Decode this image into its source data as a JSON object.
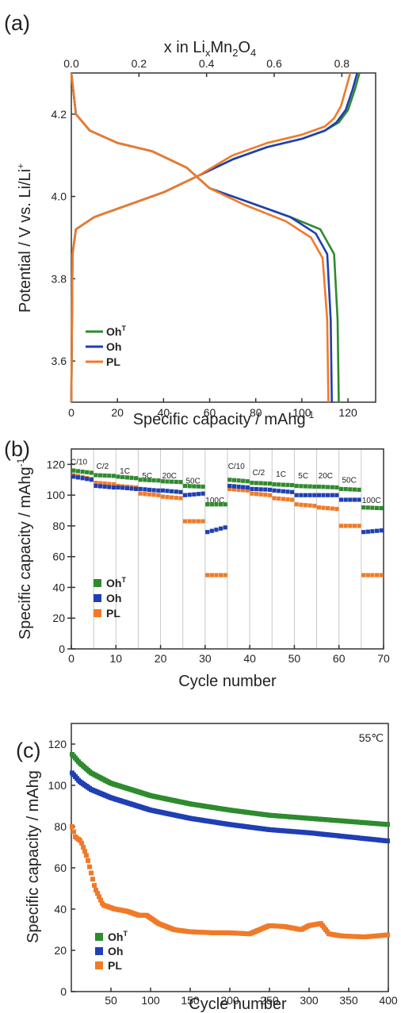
{
  "colors": {
    "OhT": "#2e8b2e",
    "Oh": "#1f3fb4",
    "PL": "#f07a28"
  },
  "chart_data": [
    {
      "panel": "(a)",
      "type": "line",
      "xlabel": "Specific capacity / mAhg",
      "xlabel_sup": "-1",
      "ylabel": "Potential / V vs. Li/Li",
      "ylabel_sup": "+",
      "top_xlabel": {
        "pre": "x in Li",
        "sub1": "x",
        "mid": "Mn",
        "sub2": "2",
        "mid2": "O",
        "sub3": "4"
      },
      "xlim": [
        0,
        132
      ],
      "ylim": [
        3.5,
        4.3
      ],
      "xticks": [
        0,
        20,
        40,
        60,
        80,
        100,
        120
      ],
      "yticks": [
        3.6,
        3.8,
        4.0,
        4.2
      ],
      "ytick_labels": [
        "3.6",
        "3.8",
        "4.0",
        "4.2"
      ],
      "top_xlim": [
        0,
        0.9
      ],
      "top_xticks": [
        0.0,
        0.2,
        0.4,
        0.6,
        0.8
      ],
      "top_xtick_labels": [
        "0.0",
        "0.2",
        "0.4",
        "0.6",
        "0.8"
      ],
      "legend": {
        "position": "lower-left",
        "entries": [
          {
            "key": "OhT",
            "base": "Oh",
            "sup": "T"
          },
          {
            "key": "Oh",
            "base": "Oh",
            "sup": ""
          },
          {
            "key": "PL",
            "base": "PL",
            "sup": ""
          }
        ]
      },
      "series": [
        {
          "key": "OhT",
          "charge": [
            [
              0,
              3.5
            ],
            [
              0.5,
              3.86
            ],
            [
              2,
              3.92
            ],
            [
              10,
              3.95
            ],
            [
              25,
              3.98
            ],
            [
              40,
              4.01
            ],
            [
              55,
              4.05
            ],
            [
              70,
              4.09
            ],
            [
              85,
              4.12
            ],
            [
              100,
              4.14
            ],
            [
              110,
              4.16
            ],
            [
              116,
              4.18
            ],
            [
              120,
              4.21
            ],
            [
              123,
              4.26
            ],
            [
              125,
              4.3
            ]
          ],
          "discharge": [
            [
              0,
              4.3
            ],
            [
              2,
              4.2
            ],
            [
              8,
              4.16
            ],
            [
              20,
              4.13
            ],
            [
              35,
              4.11
            ],
            [
              50,
              4.07
            ],
            [
              60,
              4.02
            ],
            [
              75,
              3.99
            ],
            [
              95,
              3.95
            ],
            [
              108,
              3.92
            ],
            [
              114,
              3.86
            ],
            [
              115.5,
              3.7
            ],
            [
              116,
              3.5
            ]
          ]
        },
        {
          "key": "Oh",
          "charge": [
            [
              0,
              3.5
            ],
            [
              0.5,
              3.86
            ],
            [
              2,
              3.92
            ],
            [
              10,
              3.95
            ],
            [
              25,
              3.98
            ],
            [
              40,
              4.01
            ],
            [
              55,
              4.05
            ],
            [
              70,
              4.09
            ],
            [
              85,
              4.12
            ],
            [
              100,
              4.14
            ],
            [
              110,
              4.16
            ],
            [
              115,
              4.18
            ],
            [
              119,
              4.21
            ],
            [
              122,
              4.26
            ],
            [
              124,
              4.3
            ]
          ],
          "discharge": [
            [
              0,
              4.3
            ],
            [
              2,
              4.2
            ],
            [
              8,
              4.16
            ],
            [
              20,
              4.13
            ],
            [
              35,
              4.11
            ],
            [
              50,
              4.07
            ],
            [
              60,
              4.02
            ],
            [
              75,
              3.99
            ],
            [
              95,
              3.95
            ],
            [
              106,
              3.91
            ],
            [
              111,
              3.86
            ],
            [
              112.5,
              3.7
            ],
            [
              113,
              3.5
            ]
          ]
        },
        {
          "key": "PL",
          "charge": [
            [
              0,
              3.5
            ],
            [
              0.5,
              3.86
            ],
            [
              2,
              3.92
            ],
            [
              10,
              3.95
            ],
            [
              25,
              3.98
            ],
            [
              40,
              4.01
            ],
            [
              55,
              4.05
            ],
            [
              70,
              4.1
            ],
            [
              85,
              4.13
            ],
            [
              100,
              4.15
            ],
            [
              110,
              4.17
            ],
            [
              114,
              4.19
            ],
            [
              117,
              4.22
            ],
            [
              119,
              4.26
            ],
            [
              121,
              4.3
            ]
          ],
          "discharge": [
            [
              0,
              4.3
            ],
            [
              2,
              4.2
            ],
            [
              8,
              4.16
            ],
            [
              20,
              4.13
            ],
            [
              35,
              4.11
            ],
            [
              50,
              4.07
            ],
            [
              60,
              4.02
            ],
            [
              75,
              3.98
            ],
            [
              93,
              3.94
            ],
            [
              104,
              3.9
            ],
            [
              109,
              3.85
            ],
            [
              111,
              3.7
            ],
            [
              111.5,
              3.5
            ]
          ]
        }
      ]
    },
    {
      "panel": "(b)",
      "type": "scatter",
      "xlabel": "Cycle number",
      "ylabel": "Specific capacity / mAhg",
      "ylabel_sup": "-1",
      "xlim": [
        0,
        70
      ],
      "ylim": [
        0,
        130
      ],
      "xticks": [
        0,
        10,
        20,
        30,
        40,
        50,
        60,
        70
      ],
      "yticks": [
        0,
        20,
        40,
        60,
        80,
        100,
        120
      ],
      "grid_vertical_every": 5,
      "rate_labels": [
        {
          "text": "C/10",
          "x": 1.7,
          "y": 120
        },
        {
          "text": "C/2",
          "x": 7,
          "y": 117
        },
        {
          "text": "1C",
          "x": 12,
          "y": 114
        },
        {
          "text": "5C",
          "x": 17,
          "y": 111
        },
        {
          "text": "20C",
          "x": 22,
          "y": 111
        },
        {
          "text": "50C",
          "x": 27.3,
          "y": 107.5
        },
        {
          "text": "100C",
          "x": 32.2,
          "y": 95
        },
        {
          "text": "C/10",
          "x": 37,
          "y": 117
        },
        {
          "text": "C/2",
          "x": 42,
          "y": 113
        },
        {
          "text": "1C",
          "x": 47,
          "y": 112
        },
        {
          "text": "5C",
          "x": 52,
          "y": 111
        },
        {
          "text": "20C",
          "x": 57,
          "y": 111
        },
        {
          "text": "50C",
          "x": 62.3,
          "y": 108
        },
        {
          "text": "100C",
          "x": 67.3,
          "y": 95
        }
      ],
      "legend": {
        "position": "lower-left",
        "entries": [
          {
            "key": "OhT",
            "base": "Oh",
            "sup": "T"
          },
          {
            "key": "Oh",
            "base": "Oh",
            "sup": ""
          },
          {
            "key": "PL",
            "base": "PL",
            "sup": ""
          }
        ]
      },
      "segments": {
        "OhT": [
          [
            116,
            114.5
          ],
          [
            113,
            112.5
          ],
          [
            112,
            111
          ],
          [
            110,
            109.5
          ],
          [
            109,
            108.5
          ],
          [
            106,
            105.5
          ],
          [
            94,
            94
          ],
          [
            110,
            109
          ],
          [
            108,
            107.5
          ],
          [
            107,
            106.5
          ],
          [
            106,
            105.5
          ],
          [
            105.5,
            105
          ],
          [
            104,
            103.5
          ],
          [
            92,
            91.5
          ]
        ],
        "Oh": [
          [
            112,
            110
          ],
          [
            106,
            105
          ],
          [
            105,
            104
          ],
          [
            104,
            103
          ],
          [
            103,
            102
          ],
          [
            100,
            101
          ],
          [
            76,
            79
          ],
          [
            106,
            105
          ],
          [
            104,
            103.5
          ],
          [
            103,
            102
          ],
          [
            100,
            100
          ],
          [
            100,
            100
          ],
          [
            97,
            97
          ],
          [
            76,
            77
          ]
        ],
        "PL": [
          [
            113,
            110.5
          ],
          [
            108,
            107
          ],
          [
            106,
            105
          ],
          [
            101,
            100
          ],
          [
            99,
            98
          ],
          [
            83,
            83
          ],
          [
            48,
            48
          ],
          [
            104,
            103
          ],
          [
            101,
            100
          ],
          [
            98,
            97
          ],
          [
            94,
            93
          ],
          [
            92,
            91
          ],
          [
            80,
            80
          ],
          [
            48,
            48
          ]
        ]
      }
    },
    {
      "panel": "(c)",
      "type": "scatter",
      "xlabel": "Cycle number",
      "ylabel": "Specific capacity / mAhg",
      "annotation": "55℃",
      "xlim": [
        0,
        400
      ],
      "ylim": [
        0,
        130
      ],
      "xticks": [
        50,
        100,
        150,
        200,
        250,
        300,
        350,
        400
      ],
      "yticks": [
        0,
        20,
        40,
        60,
        80,
        100,
        120
      ],
      "legend": {
        "position": "lower-left",
        "entries": [
          {
            "key": "OhT",
            "base": "Oh",
            "sup": "T"
          },
          {
            "key": "Oh",
            "base": "Oh",
            "sup": ""
          },
          {
            "key": "PL",
            "base": "PL",
            "sup": ""
          }
        ]
      },
      "series": [
        {
          "key": "OhT",
          "points": [
            [
              1,
              115
            ],
            [
              10,
              111
            ],
            [
              25,
              106
            ],
            [
              50,
              101
            ],
            [
              75,
              98
            ],
            [
              100,
              95
            ],
            [
              150,
              91
            ],
            [
              200,
              88
            ],
            [
              250,
              85.5
            ],
            [
              300,
              84
            ],
            [
              350,
              82.5
            ],
            [
              400,
              81
            ]
          ]
        },
        {
          "key": "Oh",
          "points": [
            [
              1,
              106
            ],
            [
              10,
              102
            ],
            [
              25,
              98
            ],
            [
              50,
              94
            ],
            [
              75,
              91
            ],
            [
              100,
              88
            ],
            [
              150,
              84
            ],
            [
              200,
              81
            ],
            [
              250,
              78.5
            ],
            [
              300,
              77
            ],
            [
              350,
              75
            ],
            [
              400,
              73
            ]
          ]
        },
        {
          "key": "PL",
          "points": [
            [
              1,
              80
            ],
            [
              5,
              75
            ],
            [
              12,
              73
            ],
            [
              20,
              65
            ],
            [
              30,
              50
            ],
            [
              40,
              42
            ],
            [
              55,
              40
            ],
            [
              70,
              39
            ],
            [
              85,
              37
            ],
            [
              95,
              37
            ],
            [
              110,
              33
            ],
            [
              130,
              30
            ],
            [
              150,
              29
            ],
            [
              180,
              28.5
            ],
            [
              200,
              28.5
            ],
            [
              225,
              28
            ],
            [
              250,
              32
            ],
            [
              270,
              31.5
            ],
            [
              290,
              30
            ],
            [
              300,
              32
            ],
            [
              315,
              33
            ],
            [
              325,
              28
            ],
            [
              340,
              27
            ],
            [
              370,
              26.5
            ],
            [
              400,
              27.5
            ]
          ]
        }
      ]
    }
  ]
}
